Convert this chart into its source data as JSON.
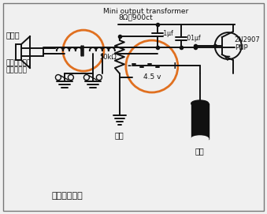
{
  "title": "Mini output transformer",
  "subtitle": "8Ω：900ct",
  "label_speaker": "扬声器",
  "label_cap_platform_1": "类似开放电容",
  "label_cap_platform_2": "的检验平台",
  "label_transistor_1": "2N2907",
  "label_transistor_2": "PNP",
  "label_resistor": "50kΩ",
  "label_cap1": ".1μf",
  "label_cap2": ".01μf",
  "label_battery": "4.5 v",
  "label_electrode": "电极",
  "label_handle": "手柄",
  "label_circuit": "同步仪电路图",
  "bg_color": "#f0f0f0",
  "line_color": "#111111",
  "orange_color": "#e07020",
  "border_color": "#777777"
}
